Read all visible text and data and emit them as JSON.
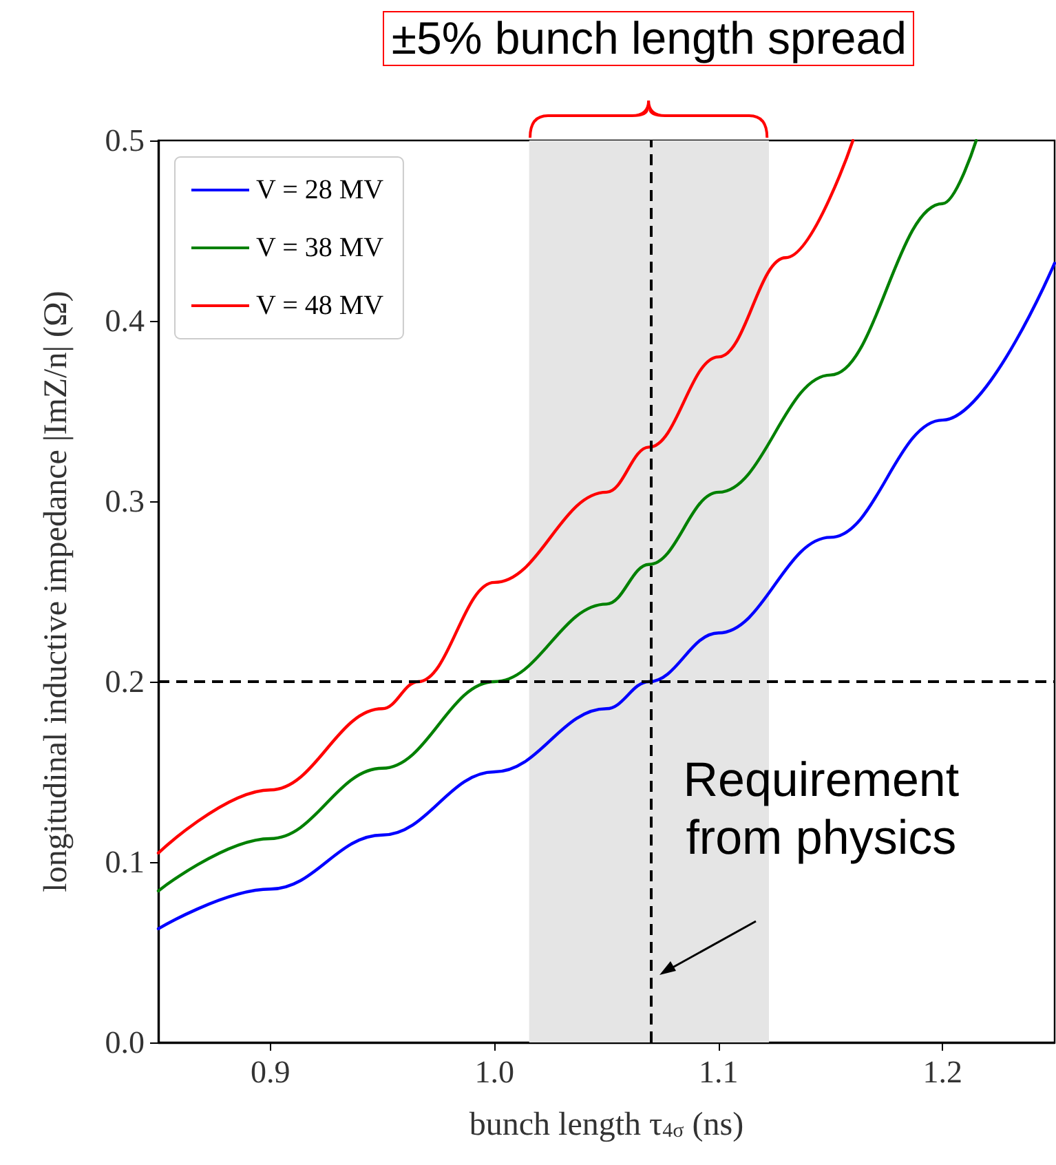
{
  "chart_data": {
    "type": "line",
    "xlabel": "bunch length τ$_{4σ}$ (ns)",
    "ylabel": "longitudinal inductive impedance |ImZ/n| (Ω)",
    "series": [
      {
        "name": "V = 28 MV",
        "color": "#0000ff",
        "x": [
          0.85,
          0.9,
          0.95,
          1.0,
          1.05,
          1.069,
          1.1,
          1.15,
          1.2,
          1.25
        ],
        "values": [
          0.063,
          0.085,
          0.115,
          0.15,
          0.185,
          0.2,
          0.227,
          0.28,
          0.345,
          0.432
        ]
      },
      {
        "name": "V = 38 MV",
        "color": "#008000",
        "x": [
          0.85,
          0.9,
          0.95,
          1.0,
          1.05,
          1.069,
          1.1,
          1.15,
          1.2,
          1.215
        ],
        "values": [
          0.084,
          0.113,
          0.152,
          0.2,
          0.243,
          0.265,
          0.305,
          0.37,
          0.465,
          0.5
        ]
      },
      {
        "name": "V = 48 MV",
        "color": "#ff0000",
        "x": [
          0.85,
          0.9,
          0.95,
          0.966,
          1.0,
          1.05,
          1.069,
          1.1,
          1.13,
          1.16
        ],
        "values": [
          0.105,
          0.14,
          0.185,
          0.2,
          0.255,
          0.305,
          0.33,
          0.38,
          0.435,
          0.5
        ]
      }
    ],
    "xlim": [
      0.85,
      1.25
    ],
    "xticks": [
      {
        "value": 0.9,
        "label": "0.9"
      },
      {
        "value": 1.0,
        "label": "1.0"
      },
      {
        "value": 1.1,
        "label": "1.1"
      },
      {
        "value": 1.2,
        "label": "1.2"
      }
    ],
    "ylim": [
      0,
      0.5
    ],
    "yticks": [
      {
        "value": 0,
        "label": "0.0"
      },
      {
        "value": 0.1,
        "label": "0.1"
      },
      {
        "value": 0.2,
        "label": "0.2"
      },
      {
        "value": 0.3,
        "label": "0.3"
      },
      {
        "value": 0.4,
        "label": "0.4"
      },
      {
        "value": 0.5,
        "label": "0.5"
      }
    ],
    "ref_lines": [
      {
        "axis": "x",
        "value": 1.069,
        "label": "Requirement from physics",
        "color": "#000000",
        "line_style": "dashed"
      },
      {
        "axis": "y",
        "value": 0.2,
        "color": "#000000",
        "line_style": "dashed"
      }
    ],
    "bands": [
      {
        "axis": "x",
        "from": 1.0155,
        "to": 1.1225,
        "label": "±5% bunch length spread",
        "color": "#e5e5e5"
      }
    ],
    "legend": "top left",
    "grid": false,
    "marker": "none",
    "line_style": "solid"
  }
}
